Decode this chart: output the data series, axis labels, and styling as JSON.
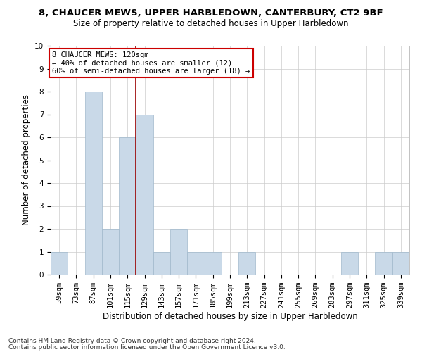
{
  "title": "8, CHAUCER MEWS, UPPER HARBLEDOWN, CANTERBURY, CT2 9BF",
  "subtitle": "Size of property relative to detached houses in Upper Harbledown",
  "xlabel": "Distribution of detached houses by size in Upper Harbledown",
  "ylabel": "Number of detached properties",
  "categories": [
    "59sqm",
    "73sqm",
    "87sqm",
    "101sqm",
    "115sqm",
    "129sqm",
    "143sqm",
    "157sqm",
    "171sqm",
    "185sqm",
    "199sqm",
    "213sqm",
    "227sqm",
    "241sqm",
    "255sqm",
    "269sqm",
    "283sqm",
    "297sqm",
    "311sqm",
    "325sqm",
    "339sqm"
  ],
  "values": [
    1,
    0,
    8,
    2,
    6,
    7,
    1,
    2,
    1,
    1,
    0,
    1,
    0,
    0,
    0,
    0,
    0,
    1,
    0,
    1,
    1
  ],
  "bar_color": "#c9d9e8",
  "bar_edge_color": "#a0b8cc",
  "ylim": [
    0,
    10
  ],
  "yticks": [
    0,
    1,
    2,
    3,
    4,
    5,
    6,
    7,
    8,
    9,
    10
  ],
  "vline_x": 4.5,
  "vline_color": "#990000",
  "annotation_text": "8 CHAUCER MEWS: 120sqm\n← 40% of detached houses are smaller (12)\n60% of semi-detached houses are larger (18) →",
  "annotation_box_color": "#ffffff",
  "annotation_box_edge": "#cc0000",
  "footnote1": "Contains HM Land Registry data © Crown copyright and database right 2024.",
  "footnote2": "Contains public sector information licensed under the Open Government Licence v3.0.",
  "title_fontsize": 9.5,
  "subtitle_fontsize": 8.5,
  "xlabel_fontsize": 8.5,
  "ylabel_fontsize": 8.5,
  "tick_fontsize": 7.5,
  "footnote_fontsize": 6.5,
  "annot_fontsize": 7.5
}
